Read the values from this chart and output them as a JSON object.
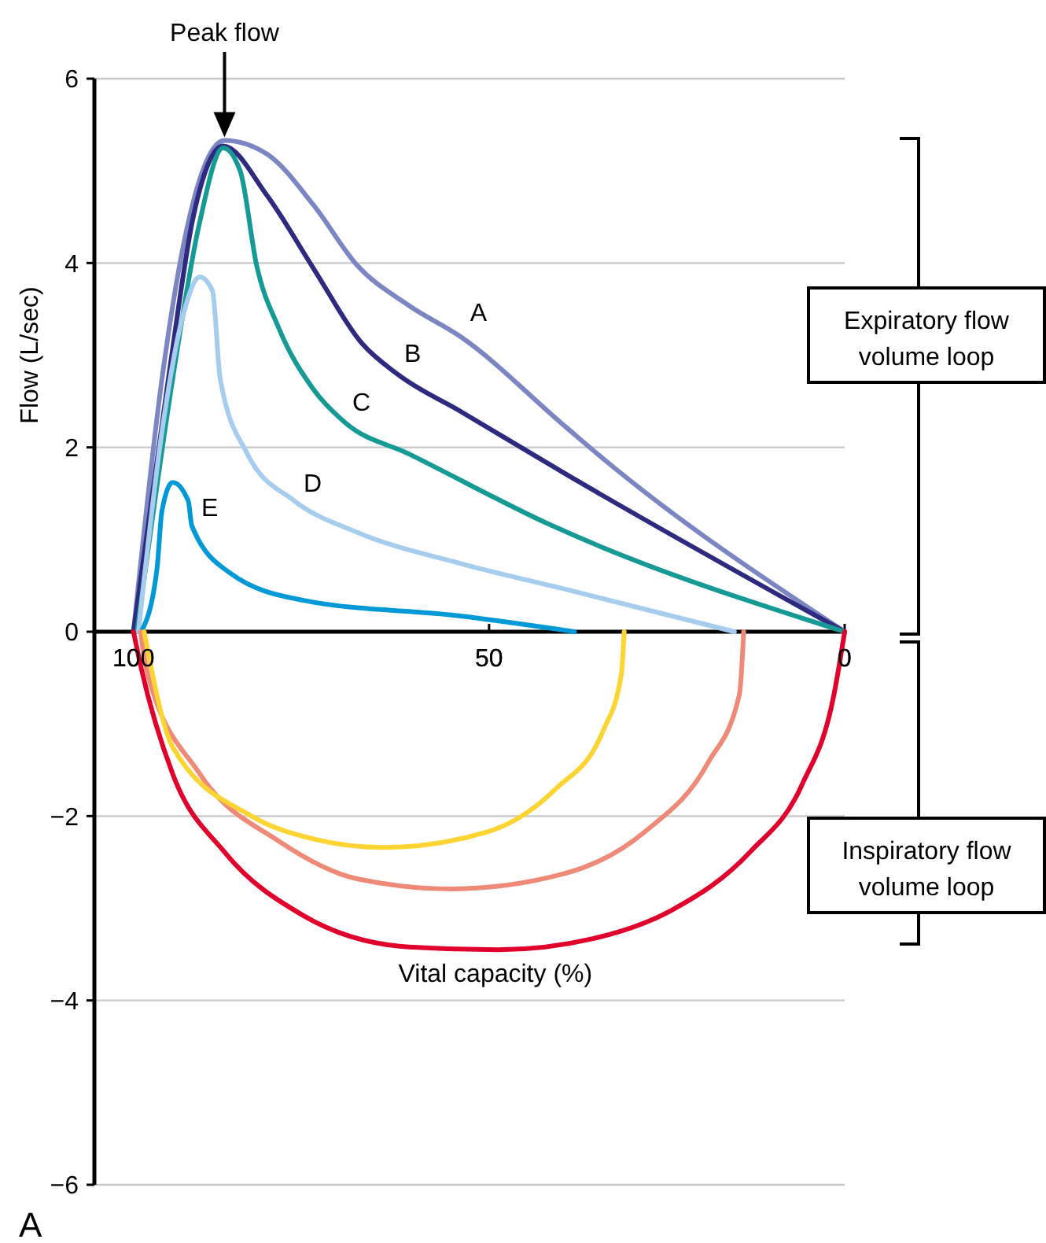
{
  "chart_data": {
    "type": "line",
    "xlabel": "Vital capacity (%)",
    "ylabel": "Flow (L/sec)",
    "xlim": [
      105.5,
      0
    ],
    "xticks": [
      100,
      50,
      0
    ],
    "ylim": [
      -6,
      6
    ],
    "yticks": [
      {
        "value": -6,
        "label": "−6"
      },
      {
        "value": -4,
        "label": "−4"
      },
      {
        "value": -2,
        "label": "−2"
      },
      0,
      2,
      4,
      6
    ],
    "grid": "y",
    "marker": "none",
    "line_style": "solid",
    "series": [
      {
        "name": "A",
        "color": "#7b86c2",
        "x": [
          100,
          96,
          92.3,
          87.2,
          81.2,
          74.6,
          68.6,
          61.3,
          54,
          39.2,
          34,
          0
        ],
        "values": [
          0,
          2.74,
          4.44,
          5.33,
          5.18,
          4.62,
          3.98,
          3.54,
          3.2,
          2.22,
          1.88,
          0
        ]
      },
      {
        "name": "B",
        "color": "#2e2a7f",
        "x": [
          100,
          95.1,
          91.6,
          87.4,
          81.2,
          74.6,
          67.9,
          62.8,
          54,
          39.2,
          0
        ],
        "values": [
          0,
          2.74,
          4.5,
          5.27,
          4.73,
          3.93,
          3.13,
          2.79,
          2.39,
          1.71,
          0
        ]
      },
      {
        "name": "C",
        "color": "#159a95",
        "x": [
          99.5,
          94.5,
          90.7,
          87.4,
          85,
          82.7,
          79.6,
          74.6,
          70.1,
          61.3,
          41.4,
          0
        ],
        "values": [
          0,
          2.74,
          4.44,
          5.25,
          5.0,
          3.98,
          3.3,
          2.62,
          2.26,
          1.93,
          1.16,
          0
        ]
      },
      {
        "name": "D",
        "color": "#a6cdee",
        "x": [
          99.3,
          96,
          92.9,
          90.7,
          88.9,
          87.8,
          84,
          77.4,
          68.6,
          54,
          39.2,
          15.5
        ],
        "values": [
          0,
          2.17,
          3.47,
          3.85,
          3.7,
          2.74,
          1.93,
          1.42,
          1.08,
          0.74,
          0.46,
          0
        ]
      },
      {
        "name": "E",
        "color": "#0099d8",
        "x": [
          98.9,
          96.7,
          96,
          94.5,
          92.3,
          91.8,
          86.3,
          76.1,
          54,
          38
        ],
        "values": [
          0,
          0.68,
          1.31,
          1.62,
          1.42,
          1.15,
          0.63,
          0.34,
          0.17,
          0
        ]
      },
      {
        "color": "#e0002b",
        "x": [
          100,
          98.9,
          94.5,
          87.2,
          76.1,
          61.3,
          48.7,
          35.4,
          24.3,
          13.3,
          6,
          1.5,
          0
        ],
        "values": [
          0,
          -0.4,
          -1.54,
          -2.39,
          -3.08,
          -3.42,
          -3.45,
          -3.33,
          -3.02,
          -2.39,
          -1.66,
          -0.68,
          0
        ]
      },
      {
        "color": "#f08a78",
        "x": [
          99,
          98.2,
          90.7,
          79.6,
          68.6,
          55.3,
          39.2,
          28.1,
          19.2,
          14.8,
          14.2
        ],
        "values": [
          0,
          -0.4,
          -1.54,
          -2.27,
          -2.68,
          -2.79,
          -2.62,
          -2.17,
          -1.42,
          -0.68,
          0
        ]
      },
      {
        "color": "#fcd533",
        "x": [
          98.5,
          94.5,
          83.4,
          74.6,
          65,
          50.2,
          40.7,
          34,
          31.4,
          31
        ],
        "values": [
          0,
          -1.25,
          -2.0,
          -2.25,
          -2.34,
          -2.17,
          -1.71,
          -1.08,
          -0.46,
          0
        ]
      }
    ],
    "annotations": [
      "Peak flow",
      "Expiratory flow volume loop",
      "Inspiratory flow volume loop",
      "A"
    ]
  }
}
